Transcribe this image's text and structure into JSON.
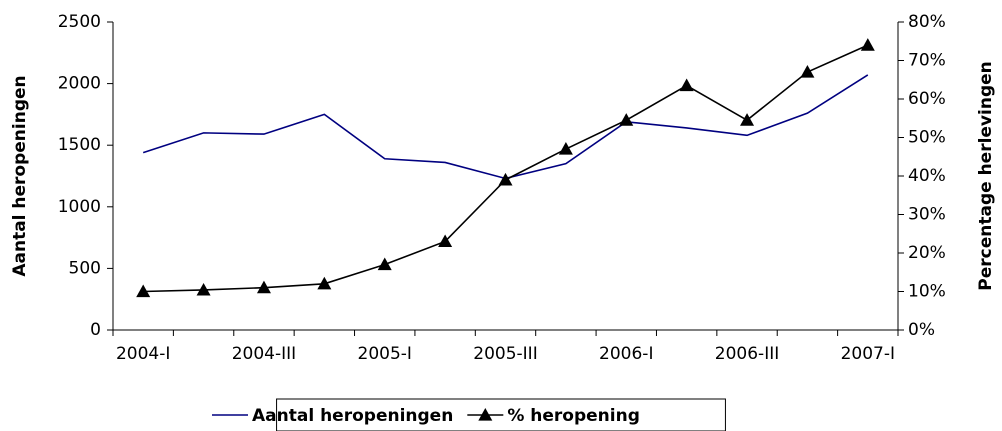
{
  "chart_data": {
    "type": "line",
    "categories": [
      "2004-I",
      null,
      "2004-III",
      null,
      "2005-I",
      null,
      "2005-III",
      null,
      "2006-I",
      null,
      "2006-III",
      null,
      "2007-I"
    ],
    "series": [
      {
        "name": "Aantal heropeningen",
        "color": "#000080",
        "marker": "none",
        "values": [
          1440,
          1600,
          1590,
          1750,
          1390,
          1360,
          1230,
          1350,
          1690,
          1640,
          1580,
          1760,
          2070
        ]
      },
      {
        "name": "% heropening",
        "color": "#000000",
        "marker": "triangle",
        "axis": "y2",
        "values": [
          10,
          10.4,
          11,
          12,
          17,
          23,
          39,
          47,
          54.5,
          63.5,
          54.5,
          67,
          74
        ]
      }
    ],
    "ylabel": "Aantal heropeningen",
    "y2label": "Percentage herlevingen",
    "ylim": [
      0,
      2500
    ],
    "yticks": [
      0,
      500,
      1000,
      1500,
      2000,
      2500
    ],
    "y2lim": [
      0,
      80
    ],
    "y2ticks": [
      {
        "value": 0,
        "label": "0%"
      },
      {
        "value": 10,
        "label": "10%"
      },
      {
        "value": 20,
        "label": "20%"
      },
      {
        "value": 30,
        "label": "30%"
      },
      {
        "value": 40,
        "label": "40%"
      },
      {
        "value": 50,
        "label": "50%"
      },
      {
        "value": 60,
        "label": "60%"
      },
      {
        "value": 70,
        "label": "70%"
      },
      {
        "value": 80,
        "label": "80%"
      }
    ],
    "legend": "bottom"
  }
}
